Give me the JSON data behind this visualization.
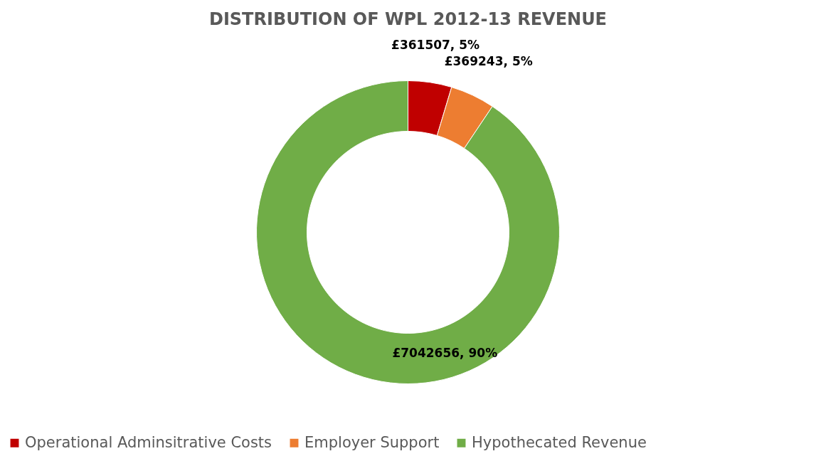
{
  "chart_data": {
    "type": "donut",
    "title": "DISTRIBUTION OF WPL 2012-13 REVENUE",
    "categories": [
      "Operational Adminsitrative Costs",
      "Employer Support",
      "Hypothecated  Revenue"
    ],
    "values": [
      361507,
      369243,
      7042656
    ],
    "colors": [
      "#c00000",
      "#ed7d31",
      "#70ad47"
    ],
    "value_labels": [
      "£361507, 5%",
      "£369243, 5%",
      "£7042656, 90%"
    ],
    "legend": "bottom"
  }
}
